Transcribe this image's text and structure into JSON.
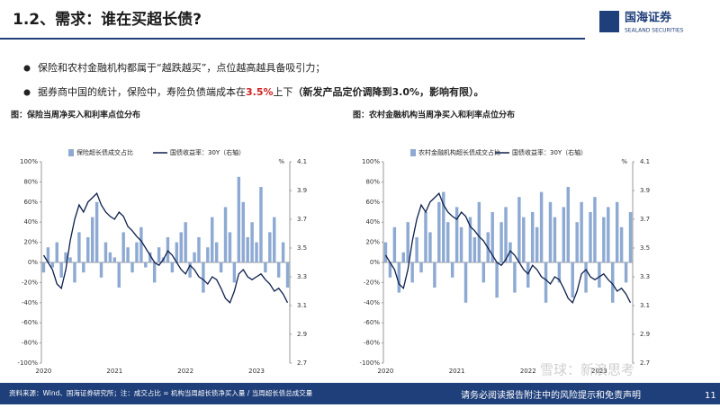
{
  "header": {
    "title": "1.2、需求：谁在买超长债?",
    "logo": "国海证券",
    "logo_en": "SEALAND SECURITIES"
  },
  "bullets": [
    [
      "保险和农村金融机构都属于“越跌越买”，点位越高越具备吸引力；"
    ],
    [
      "据券商中国的统计，保险中，寿险负债端成本在",
      "3.5%",
      "上下",
      "（新发产品定价调降到3.0%，影响有限）。"
    ]
  ],
  "footer": {
    "source": "资料来源：Wind、国海证券研究所；注：成交占比 = 机构当周超长债净买入量 / 当周超长债总成交量",
    "disclaimer": "请务必阅读报告附注中的风险提示和免责声明",
    "page": "11",
    "watermark": "雪球：新浪思考"
  },
  "chart_data": [
    {
      "type": "bar",
      "title": "图：保险当周净买入和利率点位分布",
      "categories": [
        "2020",
        null,
        null,
        null,
        null,
        null,
        null,
        null,
        null,
        null,
        null,
        null,
        null,
        null,
        null,
        null,
        "2021",
        null,
        null,
        null,
        null,
        null,
        null,
        null,
        null,
        null,
        null,
        null,
        null,
        null,
        null,
        null,
        "2022",
        null,
        null,
        null,
        null,
        null,
        null,
        null,
        null,
        null,
        null,
        null,
        null,
        null,
        null,
        null,
        "2023",
        null,
        null,
        null,
        null,
        null,
        null,
        null
      ],
      "series": [
        {
          "name": "保险超长债成交占比",
          "type": "bar",
          "color": "#8eaad3",
          "values": [
            -10,
            15,
            -5,
            20,
            -15,
            10,
            5,
            -20,
            30,
            -10,
            25,
            45,
            60,
            -15,
            20,
            10,
            5,
            -25,
            30,
            15,
            -10,
            20,
            35,
            -5,
            10,
            -20,
            15,
            5,
            25,
            -10,
            20,
            30,
            40,
            -15,
            10,
            25,
            -30,
            15,
            45,
            20,
            -10,
            55,
            30,
            -20,
            85,
            60,
            25,
            40,
            20,
            75,
            -10,
            30,
            45,
            -15,
            20,
            -25
          ]
        },
        {
          "name": "国债收益率：30Y（右轴）",
          "type": "line",
          "axis": "y2",
          "color": "#0d1f4c",
          "values": [
            3.45,
            3.4,
            3.35,
            3.25,
            3.22,
            3.35,
            3.55,
            3.7,
            3.8,
            3.75,
            3.82,
            3.85,
            3.88,
            3.8,
            3.75,
            3.72,
            3.7,
            3.75,
            3.72,
            3.65,
            3.62,
            3.58,
            3.55,
            3.5,
            3.45,
            3.4,
            3.38,
            3.42,
            3.48,
            3.45,
            3.4,
            3.35,
            3.32,
            3.38,
            3.35,
            3.3,
            3.28,
            3.25,
            3.3,
            3.28,
            3.22,
            3.15,
            3.12,
            3.2,
            3.32,
            3.35,
            3.3,
            3.28,
            3.3,
            3.32,
            3.28,
            3.25,
            3.2,
            3.22,
            3.18,
            3.12
          ]
        }
      ],
      "ylim": [
        -100,
        100
      ],
      "yticks": [
        {
          "value": 100,
          "label": "100%"
        },
        {
          "value": 80,
          "label": "80%"
        },
        {
          "value": 60,
          "label": "60%"
        },
        {
          "value": 40,
          "label": "40%"
        },
        {
          "value": 20,
          "label": "20%"
        },
        {
          "value": 0,
          "label": "0%"
        },
        {
          "value": -20,
          "label": "-20%"
        },
        {
          "value": -40,
          "label": "-40%"
        },
        {
          "value": -60,
          "label": "-60%"
        },
        {
          "value": -80,
          "label": "-80%"
        },
        {
          "value": -100,
          "label": "-100%"
        }
      ],
      "y2label": "%",
      "y2lim": [
        2.7,
        4.1
      ],
      "y2ticks": [
        4.1,
        3.9,
        3.7,
        3.5,
        3.3,
        3.1,
        2.9,
        2.7
      ],
      "grid": false
    },
    {
      "type": "bar",
      "title": "图：农村金融机构当周净买入和利率点位分布",
      "categories": [
        "2020",
        null,
        null,
        null,
        null,
        null,
        null,
        null,
        null,
        null,
        null,
        null,
        null,
        null,
        null,
        null,
        "2021",
        null,
        null,
        null,
        null,
        null,
        null,
        null,
        null,
        null,
        null,
        null,
        null,
        null,
        null,
        null,
        "2022",
        null,
        null,
        null,
        null,
        null,
        null,
        null,
        null,
        null,
        null,
        null,
        null,
        null,
        null,
        null,
        "2023",
        null,
        null,
        null,
        null,
        null,
        null,
        null
      ],
      "series": [
        {
          "name": "农村金融机构超长债成交占比",
          "type": "bar",
          "color": "#8eaad3",
          "values": [
            20,
            -15,
            35,
            -30,
            10,
            40,
            -20,
            25,
            -10,
            50,
            30,
            -25,
            60,
            70,
            40,
            -15,
            55,
            35,
            -40,
            45,
            25,
            60,
            -20,
            30,
            50,
            -35,
            40,
            55,
            20,
            -30,
            65,
            45,
            -25,
            50,
            35,
            70,
            -40,
            60,
            45,
            -20,
            55,
            75,
            -35,
            40,
            60,
            -30,
            50,
            65,
            -25,
            45,
            55,
            -40,
            60,
            35,
            -20,
            50
          ]
        },
        {
          "name": "国债收益率：30Y（右轴）",
          "type": "line",
          "axis": "y2",
          "color": "#0d1f4c",
          "values": [
            3.45,
            3.4,
            3.35,
            3.25,
            3.22,
            3.35,
            3.55,
            3.7,
            3.8,
            3.75,
            3.82,
            3.85,
            3.88,
            3.8,
            3.75,
            3.72,
            3.7,
            3.75,
            3.72,
            3.65,
            3.62,
            3.58,
            3.55,
            3.5,
            3.45,
            3.4,
            3.38,
            3.42,
            3.48,
            3.45,
            3.4,
            3.35,
            3.32,
            3.38,
            3.35,
            3.3,
            3.28,
            3.25,
            3.3,
            3.28,
            3.22,
            3.15,
            3.12,
            3.2,
            3.32,
            3.35,
            3.3,
            3.28,
            3.3,
            3.32,
            3.28,
            3.25,
            3.2,
            3.22,
            3.18,
            3.12
          ]
        }
      ],
      "ylim": [
        -100,
        100
      ],
      "yticks": [
        {
          "value": 100,
          "label": "100%"
        },
        {
          "value": 80,
          "label": "80%"
        },
        {
          "value": 60,
          "label": "60%"
        },
        {
          "value": 40,
          "label": "40%"
        },
        {
          "value": 20,
          "label": "20%"
        },
        {
          "value": 0,
          "label": "0%"
        },
        {
          "value": -20,
          "label": "-20%"
        },
        {
          "value": -40,
          "label": "-40%"
        },
        {
          "value": -60,
          "label": "-60%"
        },
        {
          "value": -80,
          "label": "-80%"
        },
        {
          "value": -100,
          "label": "-100%"
        }
      ],
      "y2label": "%",
      "y2lim": [
        2.7,
        4.1
      ],
      "y2ticks": [
        4.1,
        3.9,
        3.7,
        3.5,
        3.3,
        3.1,
        2.9,
        2.7
      ],
      "grid": false
    }
  ]
}
